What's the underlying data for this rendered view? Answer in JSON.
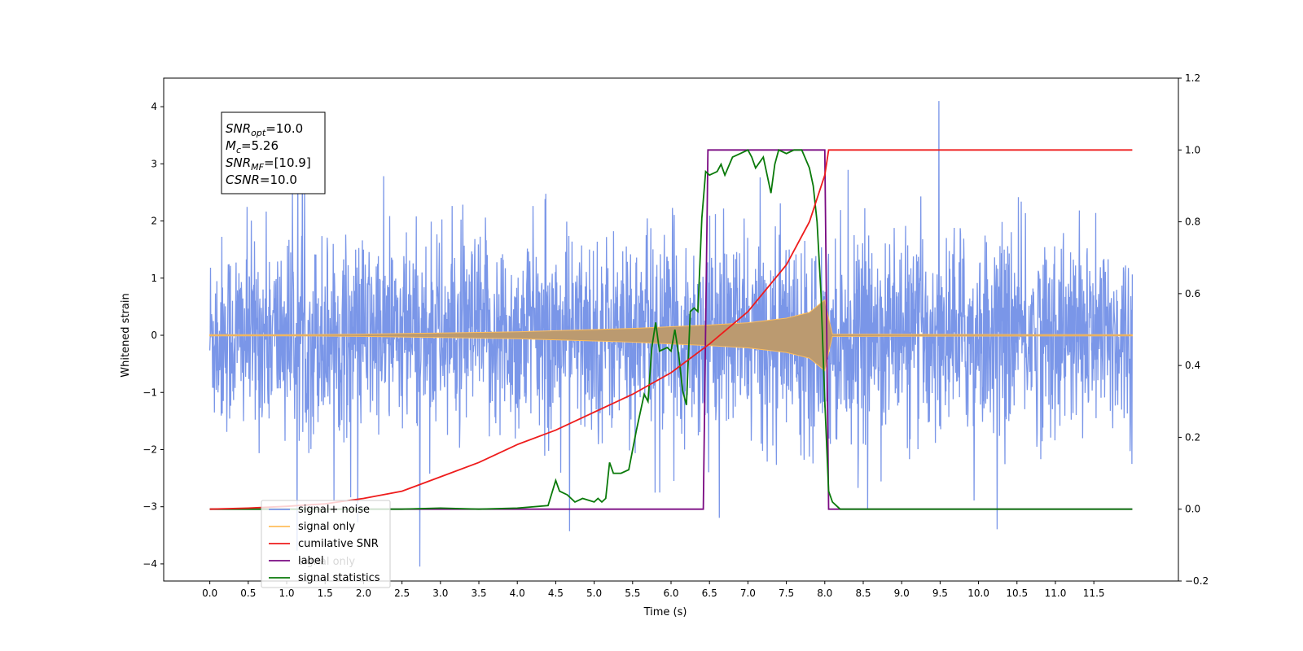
{
  "chart_data": {
    "type": "line",
    "title": "",
    "xlabel": "Time (s)",
    "ylabel": "Whitened strain",
    "xlim": [
      -0.6,
      12.6
    ],
    "ylim": [
      -4.3,
      4.5
    ],
    "y2lim": [
      -0.2,
      1.2
    ],
    "grid": false,
    "legend_position": "lower-left",
    "x_ticks": [
      "0.0",
      "0.5",
      "1.0",
      "1.5",
      "2.0",
      "2.5",
      "3.0",
      "3.5",
      "4.0",
      "4.5",
      "5.0",
      "5.5",
      "6.0",
      "6.5",
      "7.0",
      "7.5",
      "8.0",
      "8.5",
      "9.0",
      "9.5",
      "10.0",
      "10.5",
      "11.0",
      "11.5"
    ],
    "y_ticks": [
      "−4",
      "−3",
      "−2",
      "−1",
      "0",
      "1",
      "2",
      "3",
      "4"
    ],
    "y2_ticks": [
      "−0.2",
      "0.0",
      "0.2",
      "0.4",
      "0.6",
      "0.8",
      "1.0",
      "1.2"
    ],
    "annotation": [
      {
        "sym": "SNR",
        "sub": "opt",
        "val": "=10.0"
      },
      {
        "sym": "M",
        "sub": "c",
        "val": "=5.26"
      },
      {
        "sym": "SNR",
        "sub": "MF",
        "val": "=[10.9]"
      },
      {
        "sym": "CSNR",
        "sub": "",
        "val": "=10.0"
      }
    ],
    "noise": {
      "x_range": [
        0.0,
        12.0
      ],
      "typical_amplitude": 1.6,
      "max_amplitude": 4.1
    },
    "signal_envelope": {
      "x": [
        0.0,
        1.0,
        2.0,
        3.0,
        4.0,
        5.0,
        5.5,
        6.0,
        6.5,
        7.0,
        7.5,
        7.8,
        8.0,
        8.05,
        8.1,
        12.0
      ],
      "amplitude": [
        0.01,
        0.01,
        0.02,
        0.04,
        0.06,
        0.1,
        0.12,
        0.15,
        0.18,
        0.22,
        0.3,
        0.4,
        0.62,
        0.3,
        0.02,
        0.01
      ]
    },
    "series": [
      {
        "name": "signal+ noise",
        "color": "#7a96e8",
        "axis": "left",
        "kind": "noise"
      },
      {
        "name": "signal only",
        "color": "#ffbe5c",
        "axis": "left",
        "kind": "signal"
      },
      {
        "name": "cumilative SNR",
        "color": "#ee1c1c",
        "axis": "right",
        "x": [
          0.0,
          0.5,
          1.0,
          1.5,
          2.0,
          2.5,
          3.0,
          3.5,
          4.0,
          4.5,
          5.0,
          5.5,
          6.0,
          6.5,
          7.0,
          7.5,
          7.8,
          8.0,
          8.05,
          12.0
        ],
        "values": [
          0.0,
          0.003,
          0.008,
          0.015,
          0.03,
          0.05,
          0.09,
          0.13,
          0.18,
          0.22,
          0.27,
          0.32,
          0.38,
          0.46,
          0.55,
          0.68,
          0.8,
          0.93,
          1.0,
          1.0
        ]
      },
      {
        "name": "label",
        "color": "#7a0a82",
        "axis": "right",
        "x": [
          0.0,
          6.42,
          6.48,
          8.0,
          8.05,
          12.0
        ],
        "values": [
          0.0,
          0.0,
          1.0,
          1.0,
          0.0,
          0.0
        ]
      },
      {
        "name": "signal statistics",
        "color": "#0a7a0a",
        "axis": "right",
        "x": [
          0.0,
          2.5,
          3.0,
          3.5,
          4.0,
          4.4,
          4.5,
          4.55,
          4.65,
          4.75,
          4.85,
          5.0,
          5.05,
          5.1,
          5.15,
          5.2,
          5.25,
          5.35,
          5.45,
          5.55,
          5.65,
          5.7,
          5.75,
          5.8,
          5.85,
          5.95,
          6.0,
          6.05,
          6.1,
          6.15,
          6.2,
          6.25,
          6.3,
          6.35,
          6.4,
          6.45,
          6.5,
          6.6,
          6.65,
          6.7,
          6.8,
          6.9,
          7.0,
          7.05,
          7.1,
          7.2,
          7.3,
          7.35,
          7.4,
          7.5,
          7.6,
          7.7,
          7.8,
          7.85,
          7.9,
          7.95,
          8.0,
          8.05,
          8.1,
          8.15,
          8.2,
          8.3,
          8.4,
          12.0
        ],
        "values": [
          0.0,
          0.0,
          0.003,
          0.0,
          0.003,
          0.01,
          0.08,
          0.05,
          0.04,
          0.02,
          0.03,
          0.02,
          0.03,
          0.02,
          0.03,
          0.13,
          0.1,
          0.1,
          0.11,
          0.22,
          0.32,
          0.3,
          0.45,
          0.52,
          0.44,
          0.45,
          0.44,
          0.5,
          0.43,
          0.33,
          0.29,
          0.55,
          0.56,
          0.55,
          0.81,
          0.94,
          0.93,
          0.94,
          0.96,
          0.93,
          0.98,
          0.99,
          1.0,
          0.98,
          0.95,
          0.98,
          0.88,
          0.96,
          1.0,
          0.99,
          1.0,
          1.0,
          0.95,
          0.9,
          0.8,
          0.6,
          0.3,
          0.05,
          0.02,
          0.01,
          0.0,
          0.0,
          0.0,
          0.0
        ]
      }
    ],
    "legend_overlap_text": "signal only"
  }
}
